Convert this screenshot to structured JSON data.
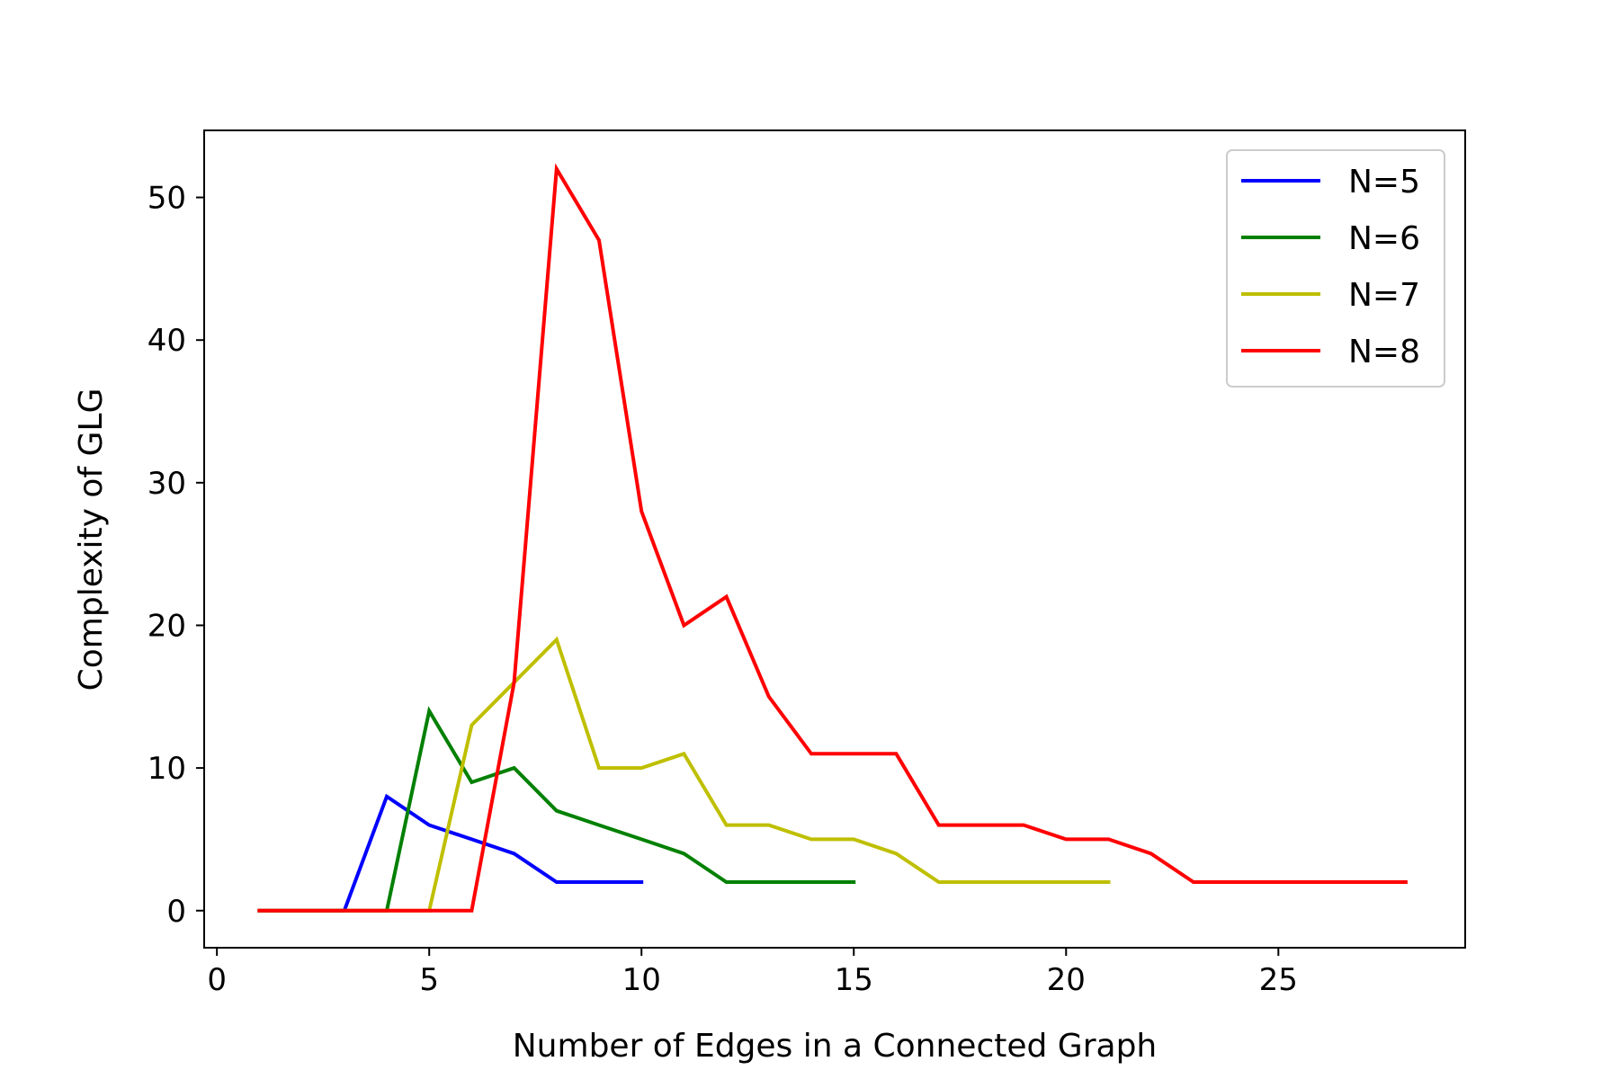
{
  "chart_data": {
    "type": "line",
    "title": "",
    "xlabel": "Number of Edges in a Connected Graph",
    "ylabel": "Complexity of GLG",
    "xlim": [
      -0.3,
      29.4
    ],
    "ylim": [
      -2.6,
      54.7
    ],
    "xticks": [
      0,
      5,
      10,
      15,
      20,
      25
    ],
    "yticks": [
      0,
      10,
      20,
      30,
      40,
      50
    ],
    "grid": false,
    "legend_position": "top-right",
    "series": [
      {
        "name": "N=5",
        "color": "#0000ff",
        "x": [
          1,
          2,
          3,
          4,
          5,
          6,
          7,
          8,
          9,
          10
        ],
        "y": [
          0,
          0,
          0,
          8,
          6,
          5,
          4,
          2,
          2,
          2
        ]
      },
      {
        "name": "N=6",
        "color": "#008000",
        "x": [
          1,
          2,
          3,
          4,
          5,
          6,
          7,
          8,
          9,
          10,
          11,
          12,
          13,
          14,
          15
        ],
        "y": [
          0,
          0,
          0,
          0,
          14,
          9,
          10,
          7,
          6,
          5,
          4,
          2,
          2,
          2,
          2
        ]
      },
      {
        "name": "N=7",
        "color": "#bfbf00",
        "x": [
          1,
          2,
          3,
          4,
          5,
          6,
          7,
          8,
          9,
          10,
          11,
          12,
          13,
          14,
          15,
          16,
          17,
          18,
          19,
          20,
          21
        ],
        "y": [
          0,
          0,
          0,
          0,
          0,
          13,
          16,
          19,
          10,
          10,
          11,
          6,
          6,
          5,
          5,
          4,
          2,
          2,
          2,
          2,
          2
        ]
      },
      {
        "name": "N=8",
        "color": "#ff0000",
        "x": [
          1,
          2,
          3,
          4,
          5,
          6,
          7,
          8,
          9,
          10,
          11,
          12,
          13,
          14,
          15,
          16,
          17,
          18,
          19,
          20,
          21,
          22,
          23,
          24,
          25,
          26,
          27,
          28
        ],
        "y": [
          0,
          0,
          0,
          0,
          0,
          0,
          16,
          52,
          47,
          28,
          20,
          22,
          15,
          11,
          11,
          11,
          6,
          6,
          6,
          5,
          5,
          4,
          2,
          2,
          2,
          2,
          2,
          2
        ]
      }
    ]
  }
}
